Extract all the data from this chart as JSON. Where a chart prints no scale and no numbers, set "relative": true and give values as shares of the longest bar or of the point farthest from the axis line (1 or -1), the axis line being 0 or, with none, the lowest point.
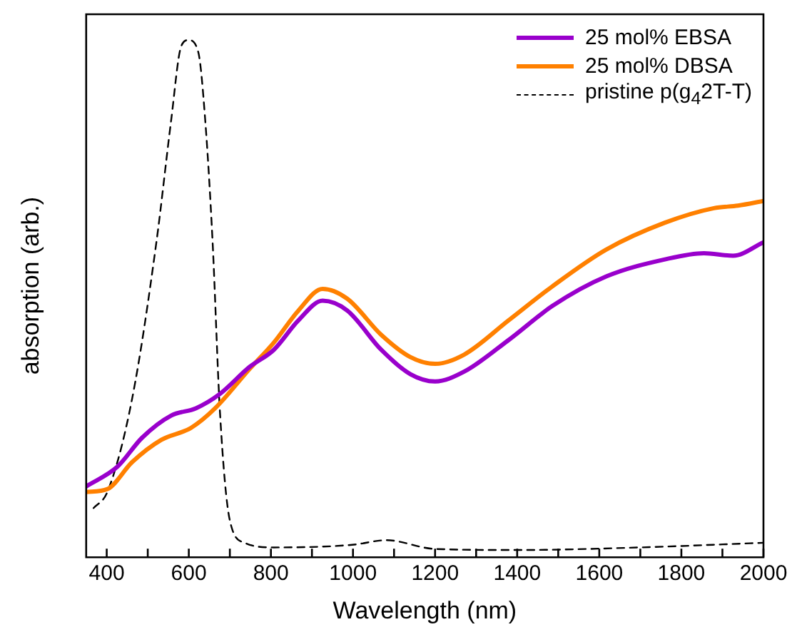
{
  "chart_data": {
    "type": "line",
    "xlabel": "Wavelength (nm)",
    "ylabel": "absorption (arb.)",
    "relative": true,
    "xlim": [
      350,
      2000
    ],
    "xticks": [
      400,
      {
        "value": 500,
        "label": null
      },
      600,
      {
        "value": 700,
        "label": null
      },
      800,
      {
        "value": 900,
        "label": null
      },
      1000,
      {
        "value": 1100,
        "label": null
      },
      1200,
      {
        "value": 1300,
        "label": null
      },
      1400,
      {
        "value": 1500,
        "label": null
      },
      1600,
      {
        "value": 1700,
        "label": null
      },
      1800,
      {
        "value": 1900,
        "label": null
      },
      2000
    ],
    "legend": "top right",
    "grid": false,
    "series": [
      {
        "name": "25 mol% EBSA",
        "color": "#9900cc",
        "line_style": "solid",
        "x": [
          350,
          426,
          486,
          557,
          617,
          676,
          748,
          807,
          867,
          926,
          986,
          1069,
          1140,
          1200,
          1271,
          1379,
          1486,
          1617,
          1760,
          1855,
          1926,
          2000
        ],
        "values": [
          0.137,
          0.175,
          0.231,
          0.274,
          0.288,
          0.316,
          0.368,
          0.401,
          0.458,
          0.496,
          0.477,
          0.401,
          0.354,
          0.34,
          0.359,
          0.42,
          0.486,
          0.543,
          0.576,
          0.588,
          0.583,
          0.609
        ]
      },
      {
        "name": "25 mol% DBSA",
        "color": "#ff8000",
        "line_style": "solid",
        "x": [
          350,
          402,
          462,
          533,
          605,
          664,
          748,
          807,
          867,
          926,
          986,
          1069,
          1140,
          1200,
          1271,
          1379,
          1486,
          1617,
          1760,
          1879,
          1938,
          2000
        ],
        "values": [
          0.126,
          0.132,
          0.184,
          0.227,
          0.25,
          0.288,
          0.364,
          0.415,
          0.477,
          0.519,
          0.5,
          0.43,
          0.387,
          0.374,
          0.392,
          0.458,
          0.524,
          0.595,
          0.647,
          0.675,
          0.68,
          0.689
        ]
      },
      {
        "name": "pristine p(g$_{4}$2T-T)",
        "color": "#000000",
        "line_style": "dashed",
        "x": [
          368,
          402,
          462,
          521,
          557,
          581,
          599,
          623,
          640,
          658,
          676,
          700,
          736,
          807,
          998,
          1081,
          1200,
          1402,
          1700,
          2000
        ],
        "values": [
          0.095,
          0.127,
          0.307,
          0.609,
          0.845,
          0.987,
          1,
          0.977,
          0.845,
          0.609,
          0.279,
          0.071,
          0.028,
          0.019,
          0.024,
          0.033,
          0.016,
          0.014,
          0.019,
          0.028
        ]
      }
    ]
  }
}
